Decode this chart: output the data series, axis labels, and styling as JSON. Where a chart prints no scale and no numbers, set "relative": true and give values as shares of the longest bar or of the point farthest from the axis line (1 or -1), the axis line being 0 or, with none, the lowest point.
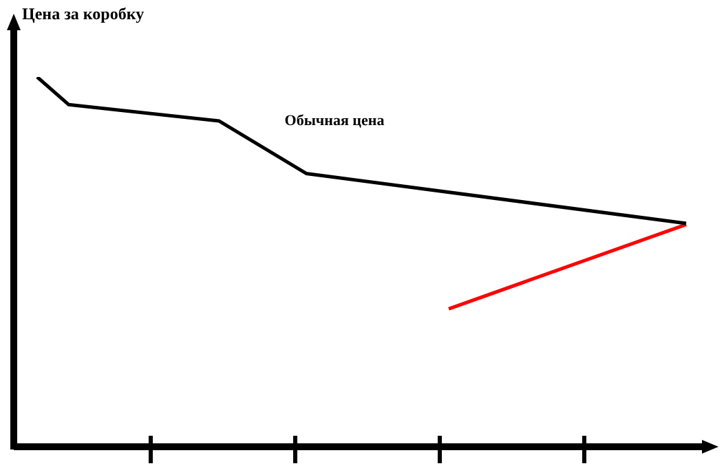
{
  "chart_data": {
    "type": "line",
    "ylabel": "Цена за коробку",
    "relative": true,
    "categories": [
      null,
      null,
      null,
      null,
      null,
      null,
      null,
      null,
      null,
      null,
      null,
      null,
      null,
      null,
      null,
      null,
      null,
      null,
      null,
      null,
      null,
      null,
      null,
      null,
      null,
      null,
      null,
      null,
      null,
      null,
      null,
      null,
      null,
      null,
      null,
      null,
      null,
      null,
      null,
      null,
      null,
      null,
      null,
      null,
      null,
      null,
      null,
      null,
      null,
      null,
      null,
      null,
      null,
      null,
      null,
      null,
      null,
      null,
      null,
      null,
      null,
      null,
      null,
      null,
      null,
      null,
      null,
      null,
      null,
      null,
      null,
      null,
      null,
      null,
      null,
      null,
      null,
      null,
      null,
      null,
      null,
      null,
      null
    ],
    "series": [
      {
        "color": "#000000",
        "values": [
          1,
          null,
          null,
          null,
          0.925,
          null,
          null,
          null,
          null,
          null,
          null,
          null,
          null,
          null,
          null,
          null,
          null,
          null,
          null,
          null,
          null,
          null,
          null,
          0.881,
          null,
          null,
          null,
          null,
          null,
          null,
          null,
          null,
          null,
          null,
          0.739,
          null,
          null,
          null,
          null,
          null,
          null,
          null,
          null,
          null,
          null,
          null,
          null,
          null,
          null,
          null,
          null,
          null,
          null,
          null,
          null,
          null,
          null,
          null,
          null,
          null,
          null,
          null,
          null,
          null,
          null,
          null,
          null,
          null,
          null,
          null,
          null,
          null,
          null,
          null,
          null,
          null,
          null,
          null,
          null,
          null,
          null,
          null,
          0.604
        ]
      },
      {
        "color": "#ff0000",
        "values": [
          null,
          null,
          null,
          null,
          null,
          null,
          null,
          null,
          null,
          null,
          null,
          null,
          null,
          null,
          null,
          null,
          null,
          null,
          null,
          null,
          null,
          null,
          null,
          null,
          null,
          null,
          null,
          null,
          null,
          null,
          null,
          null,
          null,
          null,
          null,
          null,
          null,
          null,
          null,
          null,
          null,
          null,
          null,
          null,
          null,
          null,
          null,
          null,
          null,
          null,
          null,
          null,
          0.373,
          null,
          null,
          null,
          null,
          null,
          null,
          null,
          null,
          null,
          null,
          null,
          null,
          null,
          null,
          null,
          null,
          null,
          null,
          null,
          null,
          null,
          null,
          null,
          null,
          null,
          null,
          null,
          null,
          null,
          0.601
        ]
      }
    ],
    "annotations": [
      "Обычная цена"
    ],
    "legend": false,
    "marker": "none",
    "line_style": "solid"
  }
}
